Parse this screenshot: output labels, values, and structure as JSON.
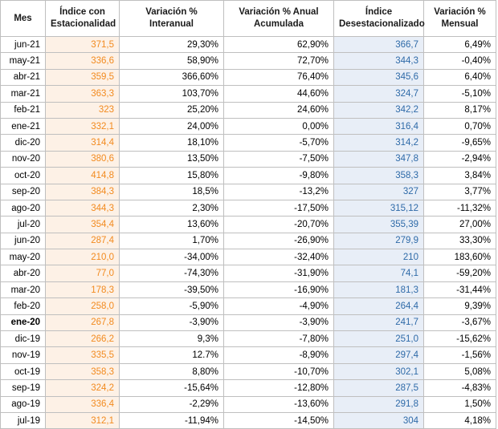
{
  "headers": {
    "mes": "Mes",
    "indice_est": [
      "Índice con",
      "Estacionalidad"
    ],
    "var_interanual": [
      "Variación %",
      "Interanual"
    ],
    "var_anual_acum": [
      "Variación % Anual",
      "Acumulada"
    ],
    "indice_desest": [
      "Índice",
      "Desestacionalizado"
    ],
    "var_mensual": [
      "Variación %",
      "Mensual"
    ]
  },
  "rows": [
    {
      "mes": "jun-21",
      "est": "371,5",
      "interanual": "29,30%",
      "acumulada": "62,90%",
      "desest": "366,7",
      "mensual": "6,49%"
    },
    {
      "mes": "may-21",
      "est": "336,6",
      "interanual": "58,90%",
      "acumulada": "72,70%",
      "desest": "344,3",
      "mensual": "-0,40%"
    },
    {
      "mes": "abr-21",
      "est": "359,5",
      "interanual": "366,60%",
      "acumulada": "76,40%",
      "desest": "345,6",
      "mensual": "6,40%"
    },
    {
      "mes": "mar-21",
      "est": "363,3",
      "interanual": "103,70%",
      "acumulada": "44,60%",
      "desest": "324,7",
      "mensual": "-5,10%"
    },
    {
      "mes": "feb-21",
      "est": "323",
      "interanual": "25,20%",
      "acumulada": "24,60%",
      "desest": "342,2",
      "mensual": "8,17%"
    },
    {
      "mes": "ene-21",
      "est": "332,1",
      "interanual": "24,00%",
      "acumulada": "0,00%",
      "desest": "316,4",
      "mensual": "0,70%"
    },
    {
      "mes": "dic-20",
      "est": "314,4",
      "interanual": "18,10%",
      "acumulada": "-5,70%",
      "desest": "314,2",
      "mensual": "-9,65%"
    },
    {
      "mes": "nov-20",
      "est": "380,6",
      "interanual": "13,50%",
      "acumulada": "-7,50%",
      "desest": "347,8",
      "mensual": "-2,94%"
    },
    {
      "mes": "oct-20",
      "est": "414,8",
      "interanual": "15,80%",
      "acumulada": "-9,80%",
      "desest": "358,3",
      "mensual": "3,84%"
    },
    {
      "mes": "sep-20",
      "est": "384,3",
      "interanual": "18,5%",
      "acumulada": "-13,2%",
      "desest": "327",
      "mensual": "3,77%"
    },
    {
      "mes": "ago-20",
      "est": "344,3",
      "interanual": "2,30%",
      "acumulada": "-17,50%",
      "desest": "315,12",
      "mensual": "-11,32%"
    },
    {
      "mes": "jul-20",
      "est": "354,4",
      "interanual": "13,60%",
      "acumulada": "-20,70%",
      "desest": "355,39",
      "mensual": "27,00%"
    },
    {
      "mes": "jun-20",
      "est": "287,4",
      "interanual": "1,70%",
      "acumulada": "-26,90%",
      "desest": "279,9",
      "mensual": "33,30%"
    },
    {
      "mes": "may-20",
      "est": "210,0",
      "interanual": "-34,00%",
      "acumulada": "-32,40%",
      "desest": "210",
      "mensual": "183,60%"
    },
    {
      "mes": "abr-20",
      "est": "77,0",
      "interanual": "-74,30%",
      "acumulada": "-31,90%",
      "desest": "74,1",
      "mensual": "-59,20%"
    },
    {
      "mes": "mar-20",
      "est": "178,3",
      "interanual": "-39,50%",
      "acumulada": "-16,90%",
      "desest": "181,3",
      "mensual": "-31,44%"
    },
    {
      "mes": "feb-20",
      "est": "258,0",
      "interanual": "-5,90%",
      "acumulada": "-4,90%",
      "desest": "264,4",
      "mensual": "9,39%"
    },
    {
      "mes": "ene-20",
      "est": "267,8",
      "interanual": "-3,90%",
      "acumulada": "-3,90%",
      "desest": "241,7",
      "mensual": "-3,67%",
      "bold": true
    },
    {
      "mes": "dic-19",
      "est": "266,2",
      "interanual": "9,3%",
      "acumulada": "-7,80%",
      "desest": "251,0",
      "mensual": "-15,62%"
    },
    {
      "mes": "nov-19",
      "est": "335,5",
      "interanual": "12.7%",
      "acumulada": "-8,90%",
      "desest": "297,4",
      "mensual": "-1,56%"
    },
    {
      "mes": "oct-19",
      "est": "358,3",
      "interanual": "8,80%",
      "acumulada": "-10,70%",
      "desest": "302,1",
      "mensual": "5,08%"
    },
    {
      "mes": "sep-19",
      "est": "324,2",
      "interanual": "-15,64%",
      "acumulada": "-12,80%",
      "desest": "287,5",
      "mensual": "-4,83%"
    },
    {
      "mes": "ago-19",
      "est": "336,4",
      "interanual": "-2,29%",
      "acumulada": "-13,60%",
      "desest": "291,8",
      "mensual": "1,50%"
    },
    {
      "mes": "jul-19",
      "est": "312,1",
      "interanual": "-11,94%",
      "acumulada": "-14,50%",
      "desest": "304",
      "mensual": "4,18%"
    }
  ],
  "colors": {
    "est_text": "#f28a1e",
    "est_bg": "#fdf1e6",
    "desest_text": "#2e6aa8",
    "desest_bg": "#e8eef7"
  }
}
